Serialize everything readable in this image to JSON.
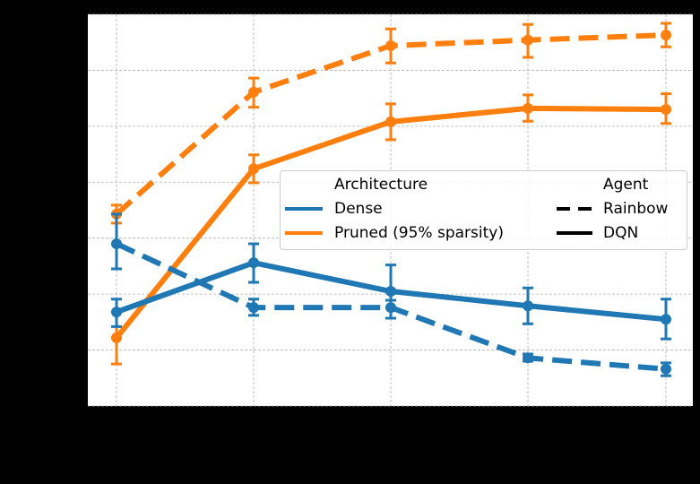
{
  "chart_data": {
    "type": "line",
    "title": "",
    "xlabel": "",
    "ylabel": "",
    "x_tick_labels_visible": false,
    "y_tick_labels_visible": false,
    "note": "Tick and axis labels are rendered black on black background (not visible). Y values are expressed in gridline units (bottom axis = 0, each horizontal gridline = 1).",
    "x": [
      1,
      2,
      3,
      4,
      5
    ],
    "ylim": [
      0,
      7.0
    ],
    "grid": true,
    "legend": {
      "position": "center-right",
      "groups": [
        {
          "title": "Architecture",
          "entries": [
            {
              "label": "Dense",
              "color": "#1f77b4",
              "style": "solid"
            },
            {
              "label": "Pruned (95% sparsity)",
              "color": "#ff7f0e",
              "style": "solid"
            }
          ]
        },
        {
          "title": "Agent",
          "entries": [
            {
              "label": "Rainbow",
              "color": "#000000",
              "style": "dashed"
            },
            {
              "label": "DQN",
              "color": "#000000",
              "style": "solid"
            }
          ]
        }
      ]
    },
    "series": [
      {
        "name": "Pruned (95% sparsity) - Rainbow",
        "architecture": "Pruned (95% sparsity)",
        "agent": "Rainbow",
        "color": "#ff7f0e",
        "style": "dashed",
        "values": [
          3.43,
          5.61,
          6.44,
          6.54,
          6.63
        ],
        "err_low": [
          3.27,
          5.34,
          6.13,
          6.23,
          6.42
        ],
        "err_high": [
          3.59,
          5.86,
          6.74,
          6.82,
          6.84
        ]
      },
      {
        "name": "Pruned (95% sparsity) - DQN",
        "architecture": "Pruned (95% sparsity)",
        "agent": "DQN",
        "color": "#ff7f0e",
        "style": "solid",
        "values": [
          1.22,
          4.24,
          5.08,
          5.32,
          5.3
        ],
        "err_low": [
          0.75,
          3.99,
          4.76,
          5.09,
          5.05
        ],
        "err_high": [
          1.68,
          4.49,
          5.4,
          5.56,
          5.58
        ]
      },
      {
        "name": "Dense - Rainbow",
        "architecture": "Dense",
        "agent": "Rainbow",
        "color": "#1f77b4",
        "style": "dashed",
        "values": [
          2.9,
          1.76,
          1.76,
          0.86,
          0.66
        ],
        "err_low": [
          2.45,
          1.62,
          1.57,
          0.8,
          0.54
        ],
        "err_high": [
          3.43,
          1.91,
          1.89,
          0.93,
          0.77
        ]
      },
      {
        "name": "Dense - DQN",
        "architecture": "Dense",
        "agent": "DQN",
        "color": "#1f77b4",
        "style": "solid",
        "values": [
          1.68,
          2.56,
          2.05,
          1.79,
          1.55
        ],
        "err_low": [
          1.42,
          2.21,
          1.57,
          1.47,
          1.2
        ],
        "err_high": [
          1.91,
          2.9,
          2.52,
          2.11,
          1.91
        ]
      }
    ]
  },
  "legend": {
    "architecture_title": "Architecture",
    "dense_label": "Dense",
    "pruned_label": "Pruned (95% sparsity)",
    "agent_title": "Agent",
    "rainbow_label": "Rainbow",
    "dqn_label": "DQN",
    "dense_color": "#1f77b4",
    "pruned_color": "#ff7f0e"
  }
}
